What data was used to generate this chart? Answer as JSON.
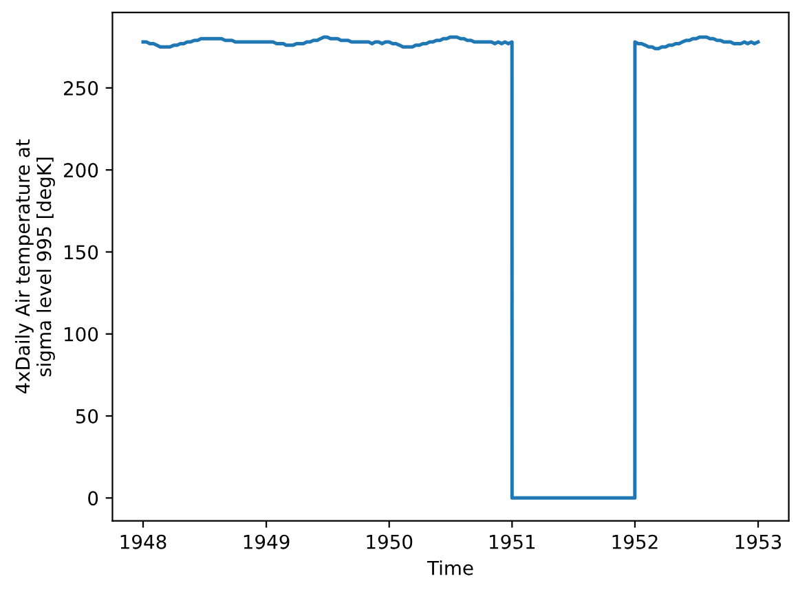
{
  "chart_data": {
    "type": "line",
    "xlabel": "Time",
    "ylabel": "4xDaily Air temperature at\nsigma level 995 [degK]",
    "x": [
      "1948-01-01",
      "1948-01-11",
      "1948-01-21",
      "1948-02-01",
      "1948-02-11",
      "1948-02-21",
      "1948-03-01",
      "1948-03-11",
      "1948-03-21",
      "1948-04-01",
      "1948-04-11",
      "1948-04-21",
      "1948-05-01",
      "1948-05-11",
      "1948-05-21",
      "1948-06-01",
      "1948-06-11",
      "1948-06-21",
      "1948-07-01",
      "1948-07-11",
      "1948-07-21",
      "1948-08-01",
      "1948-08-11",
      "1948-08-21",
      "1948-09-01",
      "1948-09-11",
      "1948-09-21",
      "1948-10-01",
      "1948-10-11",
      "1948-10-21",
      "1948-11-01",
      "1948-11-11",
      "1948-11-21",
      "1948-12-01",
      "1948-12-11",
      "1948-12-21",
      "1949-01-01",
      "1949-01-11",
      "1949-01-21",
      "1949-02-01",
      "1949-02-11",
      "1949-02-21",
      "1949-03-01",
      "1949-03-11",
      "1949-03-21",
      "1949-04-01",
      "1949-04-11",
      "1949-04-21",
      "1949-05-01",
      "1949-05-11",
      "1949-05-21",
      "1949-06-01",
      "1949-06-11",
      "1949-06-21",
      "1949-07-01",
      "1949-07-11",
      "1949-07-21",
      "1949-08-01",
      "1949-08-11",
      "1949-08-21",
      "1949-09-01",
      "1949-09-11",
      "1949-09-21",
      "1949-10-01",
      "1949-10-11",
      "1949-10-21",
      "1949-11-01",
      "1949-11-11",
      "1949-11-21",
      "1949-12-01",
      "1949-12-11",
      "1949-12-21",
      "1950-01-01",
      "1950-01-11",
      "1950-01-21",
      "1950-02-01",
      "1950-02-11",
      "1950-02-21",
      "1950-03-01",
      "1950-03-11",
      "1950-03-21",
      "1950-04-01",
      "1950-04-11",
      "1950-04-21",
      "1950-05-01",
      "1950-05-11",
      "1950-05-21",
      "1950-06-01",
      "1950-06-11",
      "1950-06-21",
      "1950-07-01",
      "1950-07-11",
      "1950-07-21",
      "1950-08-01",
      "1950-08-11",
      "1950-08-21",
      "1950-09-01",
      "1950-09-11",
      "1950-09-21",
      "1950-10-01",
      "1950-10-11",
      "1950-10-21",
      "1950-11-01",
      "1950-11-11",
      "1950-11-21",
      "1950-12-01",
      "1950-12-11",
      "1950-12-21",
      "1950-12-31T18:00",
      "1951-01-01",
      "1951-12-31T18:00",
      "1952-01-01",
      "1952-01-11",
      "1952-01-21",
      "1952-02-01",
      "1952-02-11",
      "1952-02-21",
      "1952-03-01",
      "1952-03-11",
      "1952-03-21",
      "1952-04-01",
      "1952-04-11",
      "1952-04-21",
      "1952-05-01",
      "1952-05-11",
      "1952-05-21",
      "1952-06-01",
      "1952-06-11",
      "1952-06-21",
      "1952-07-01",
      "1952-07-11",
      "1952-07-21",
      "1952-08-01",
      "1952-08-11",
      "1952-08-21",
      "1952-09-01",
      "1952-09-11",
      "1952-09-21",
      "1952-10-01",
      "1952-10-11",
      "1952-10-21",
      "1952-11-01",
      "1952-11-11",
      "1952-11-21",
      "1952-12-01",
      "1952-12-11",
      "1952-12-21",
      "1952-12-31T18:00"
    ],
    "series": [
      {
        "color": "#1f77b4",
        "values": [
          278,
          278,
          277,
          277,
          276,
          275,
          275,
          275,
          275,
          276,
          276,
          277,
          277,
          278,
          278,
          279,
          279,
          280,
          280,
          280,
          280,
          280,
          280,
          280,
          279,
          279,
          279,
          278,
          278,
          278,
          278,
          278,
          278,
          278,
          278,
          278,
          278,
          278,
          278,
          277,
          277,
          277,
          276,
          276,
          276,
          277,
          277,
          277,
          278,
          278,
          279,
          279,
          280,
          281,
          281,
          280,
          280,
          280,
          279,
          279,
          279,
          278,
          278,
          278,
          278,
          278,
          278,
          277,
          278,
          278,
          277,
          278,
          278,
          277,
          277,
          276,
          275,
          275,
          275,
          275,
          276,
          276,
          277,
          277,
          278,
          278,
          279,
          279,
          280,
          280,
          281,
          281,
          281,
          280,
          280,
          279,
          279,
          278,
          278,
          278,
          278,
          278,
          278,
          277,
          278,
          277,
          278,
          277,
          278,
          0,
          0,
          278,
          277,
          277,
          276,
          275,
          275,
          274,
          274,
          275,
          275,
          276,
          276,
          277,
          277,
          278,
          279,
          279,
          280,
          280,
          281,
          281,
          281,
          280,
          280,
          279,
          279,
          278,
          278,
          278,
          277,
          277,
          277,
          278,
          277,
          278,
          277,
          278
        ]
      }
    ],
    "xlim": [
      "1947-10-02",
      "1953-04-02"
    ],
    "xticks": [
      "1948",
      "1949",
      "1950",
      "1951",
      "1952",
      "1953"
    ],
    "ylim": [
      -14,
      296
    ],
    "yticks": [
      0,
      50,
      100,
      150,
      200,
      250
    ]
  }
}
